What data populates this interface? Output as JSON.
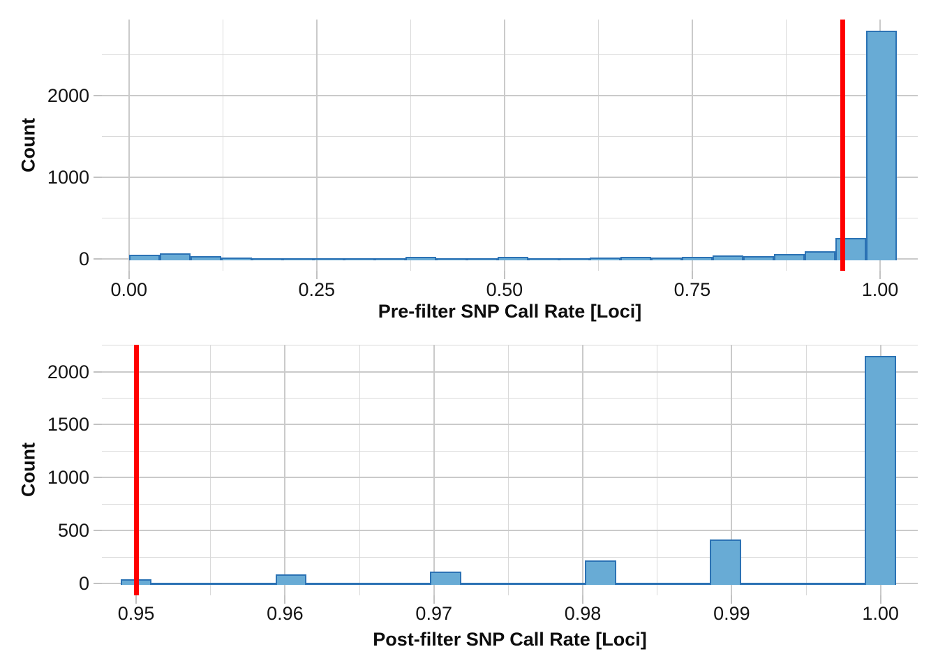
{
  "figure": {
    "background": "#ffffff",
    "bar_fill": "#68abd5",
    "bar_stroke": "#2b72b4",
    "threshold_color": "#ff0000",
    "grid_major_color": "#cacaca",
    "grid_minor_color": "#d9d9d9",
    "tick_color": "#c2c2c2",
    "text_color": "#141414"
  },
  "chart_data": [
    {
      "type": "bar",
      "subtype": "histogram",
      "title": "",
      "xlabel": "Pre-filter SNP Call Rate [Loci]",
      "ylabel": "Count",
      "xlim": [
        -0.036,
        1.0502
      ],
      "ylim": [
        -140,
        2930
      ],
      "grid": true,
      "legend": "none",
      "x_ticks": {
        "values": [
          0,
          0.25,
          0.5,
          0.75,
          1.0
        ],
        "labels": [
          "0.00",
          "0.25",
          "0.50",
          "0.75",
          "1.00"
        ]
      },
      "x_minor": [
        0.125,
        0.375,
        0.625,
        0.875
      ],
      "y_ticks": {
        "values": [
          0,
          1000,
          2000
        ],
        "labels": [
          "0",
          "1000",
          "2000"
        ]
      },
      "y_minor": [
        500,
        1500,
        2500
      ],
      "threshold_x": 0.95,
      "baseline_span": [
        0.0,
        1.0225
      ],
      "bars": [
        {
          "x0": 0.0,
          "x1": 0.0409,
          "count": 54
        },
        {
          "x0": 0.0409,
          "x1": 0.0818,
          "count": 68
        },
        {
          "x0": 0.0818,
          "x1": 0.1227,
          "count": 31
        },
        {
          "x0": 0.1227,
          "x1": 0.1636,
          "count": 20
        },
        {
          "x0": 0.1636,
          "x1": 0.2045,
          "count": 12
        },
        {
          "x0": 0.2045,
          "x1": 0.2454,
          "count": 10
        },
        {
          "x0": 0.2454,
          "x1": 0.2863,
          "count": 12
        },
        {
          "x0": 0.2863,
          "x1": 0.3272,
          "count": 10
        },
        {
          "x0": 0.3272,
          "x1": 0.3681,
          "count": 10
        },
        {
          "x0": 0.3681,
          "x1": 0.409,
          "count": 23
        },
        {
          "x0": 0.409,
          "x1": 0.4499,
          "count": 12
        },
        {
          "x0": 0.4499,
          "x1": 0.4908,
          "count": 10
        },
        {
          "x0": 0.4908,
          "x1": 0.5317,
          "count": 23
        },
        {
          "x0": 0.5317,
          "x1": 0.5726,
          "count": 12
        },
        {
          "x0": 0.5726,
          "x1": 0.6135,
          "count": 10
        },
        {
          "x0": 0.6135,
          "x1": 0.6544,
          "count": 14
        },
        {
          "x0": 0.6544,
          "x1": 0.6953,
          "count": 26
        },
        {
          "x0": 0.6953,
          "x1": 0.7362,
          "count": 22
        },
        {
          "x0": 0.7362,
          "x1": 0.7771,
          "count": 29
        },
        {
          "x0": 0.7771,
          "x1": 0.818,
          "count": 43
        },
        {
          "x0": 0.818,
          "x1": 0.8589,
          "count": 37
        },
        {
          "x0": 0.8589,
          "x1": 0.8998,
          "count": 58
        },
        {
          "x0": 0.8998,
          "x1": 0.9407,
          "count": 94
        },
        {
          "x0": 0.9407,
          "x1": 0.9816,
          "count": 255
        },
        {
          "x0": 0.9816,
          "x1": 1.0225,
          "count": 2790
        }
      ]
    },
    {
      "type": "bar",
      "subtype": "histogram",
      "title": "",
      "xlabel": "Post-filter SNP Call Rate [Loci]",
      "ylabel": "Count",
      "xlim": [
        0.9477,
        1.0025
      ],
      "ylim": [
        -107.5,
        2257.5
      ],
      "grid": true,
      "legend": "none",
      "x_ticks": {
        "values": [
          0.95,
          0.96,
          0.97,
          0.98,
          0.99,
          1.0
        ],
        "labels": [
          "0.95",
          "0.96",
          "0.97",
          "0.98",
          "0.99",
          "1.00"
        ]
      },
      "x_minor": [
        0.955,
        0.965,
        0.975,
        0.985,
        0.995
      ],
      "y_ticks": {
        "values": [
          0,
          500,
          1000,
          1500,
          2000
        ],
        "labels": [
          "0",
          "500",
          "1000",
          "1500",
          "2000"
        ]
      },
      "y_minor": [
        250,
        750,
        1250,
        1750,
        2250
      ],
      "threshold_x": 0.95,
      "baseline_span": [
        0.94895,
        1.00105
      ],
      "bars": [
        {
          "x0": 0.94895,
          "x1": 0.95105,
          "count": 40
        },
        {
          "x0": 0.95935,
          "x1": 0.96145,
          "count": 85
        },
        {
          "x0": 0.96975,
          "x1": 0.97185,
          "count": 112
        },
        {
          "x0": 0.98015,
          "x1": 0.98225,
          "count": 218
        },
        {
          "x0": 0.98855,
          "x1": 0.99065,
          "count": 417
        },
        {
          "x0": 0.99895,
          "x1": 1.00105,
          "count": 2150
        }
      ]
    }
  ]
}
